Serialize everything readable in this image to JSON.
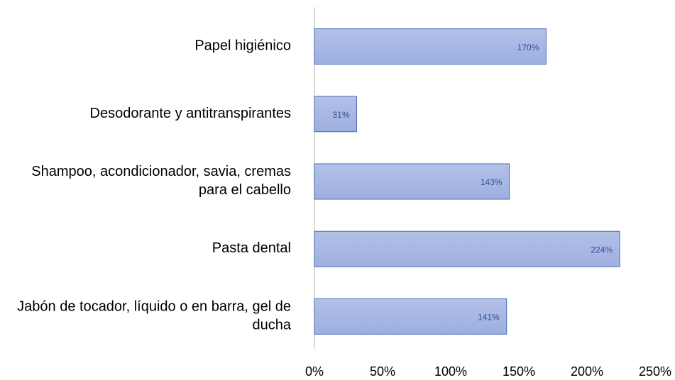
{
  "chart_data": {
    "type": "barh",
    "categories": [
      "Papel higiénico",
      "Desodorante y antitranspirantes",
      "Shampoo, acondicionador, savia, cremas para el cabello",
      "Pasta dental",
      "Jabón de tocador, líquido o en barra, gel de ducha"
    ],
    "values": [
      170,
      31,
      143,
      224,
      141
    ],
    "value_labels": [
      "170%",
      "31%",
      "143%",
      "224%",
      "141%"
    ],
    "color": "#9dafe0",
    "xlim": [
      0,
      250
    ],
    "xticks": [
      {
        "value": 0,
        "label": "0%"
      },
      {
        "value": 50,
        "label": "50%"
      },
      {
        "value": 100,
        "label": "100%"
      },
      {
        "value": 150,
        "label": "150%"
      },
      {
        "value": 200,
        "label": "200%"
      },
      {
        "value": 250,
        "label": "250%"
      }
    ],
    "grid": false
  }
}
